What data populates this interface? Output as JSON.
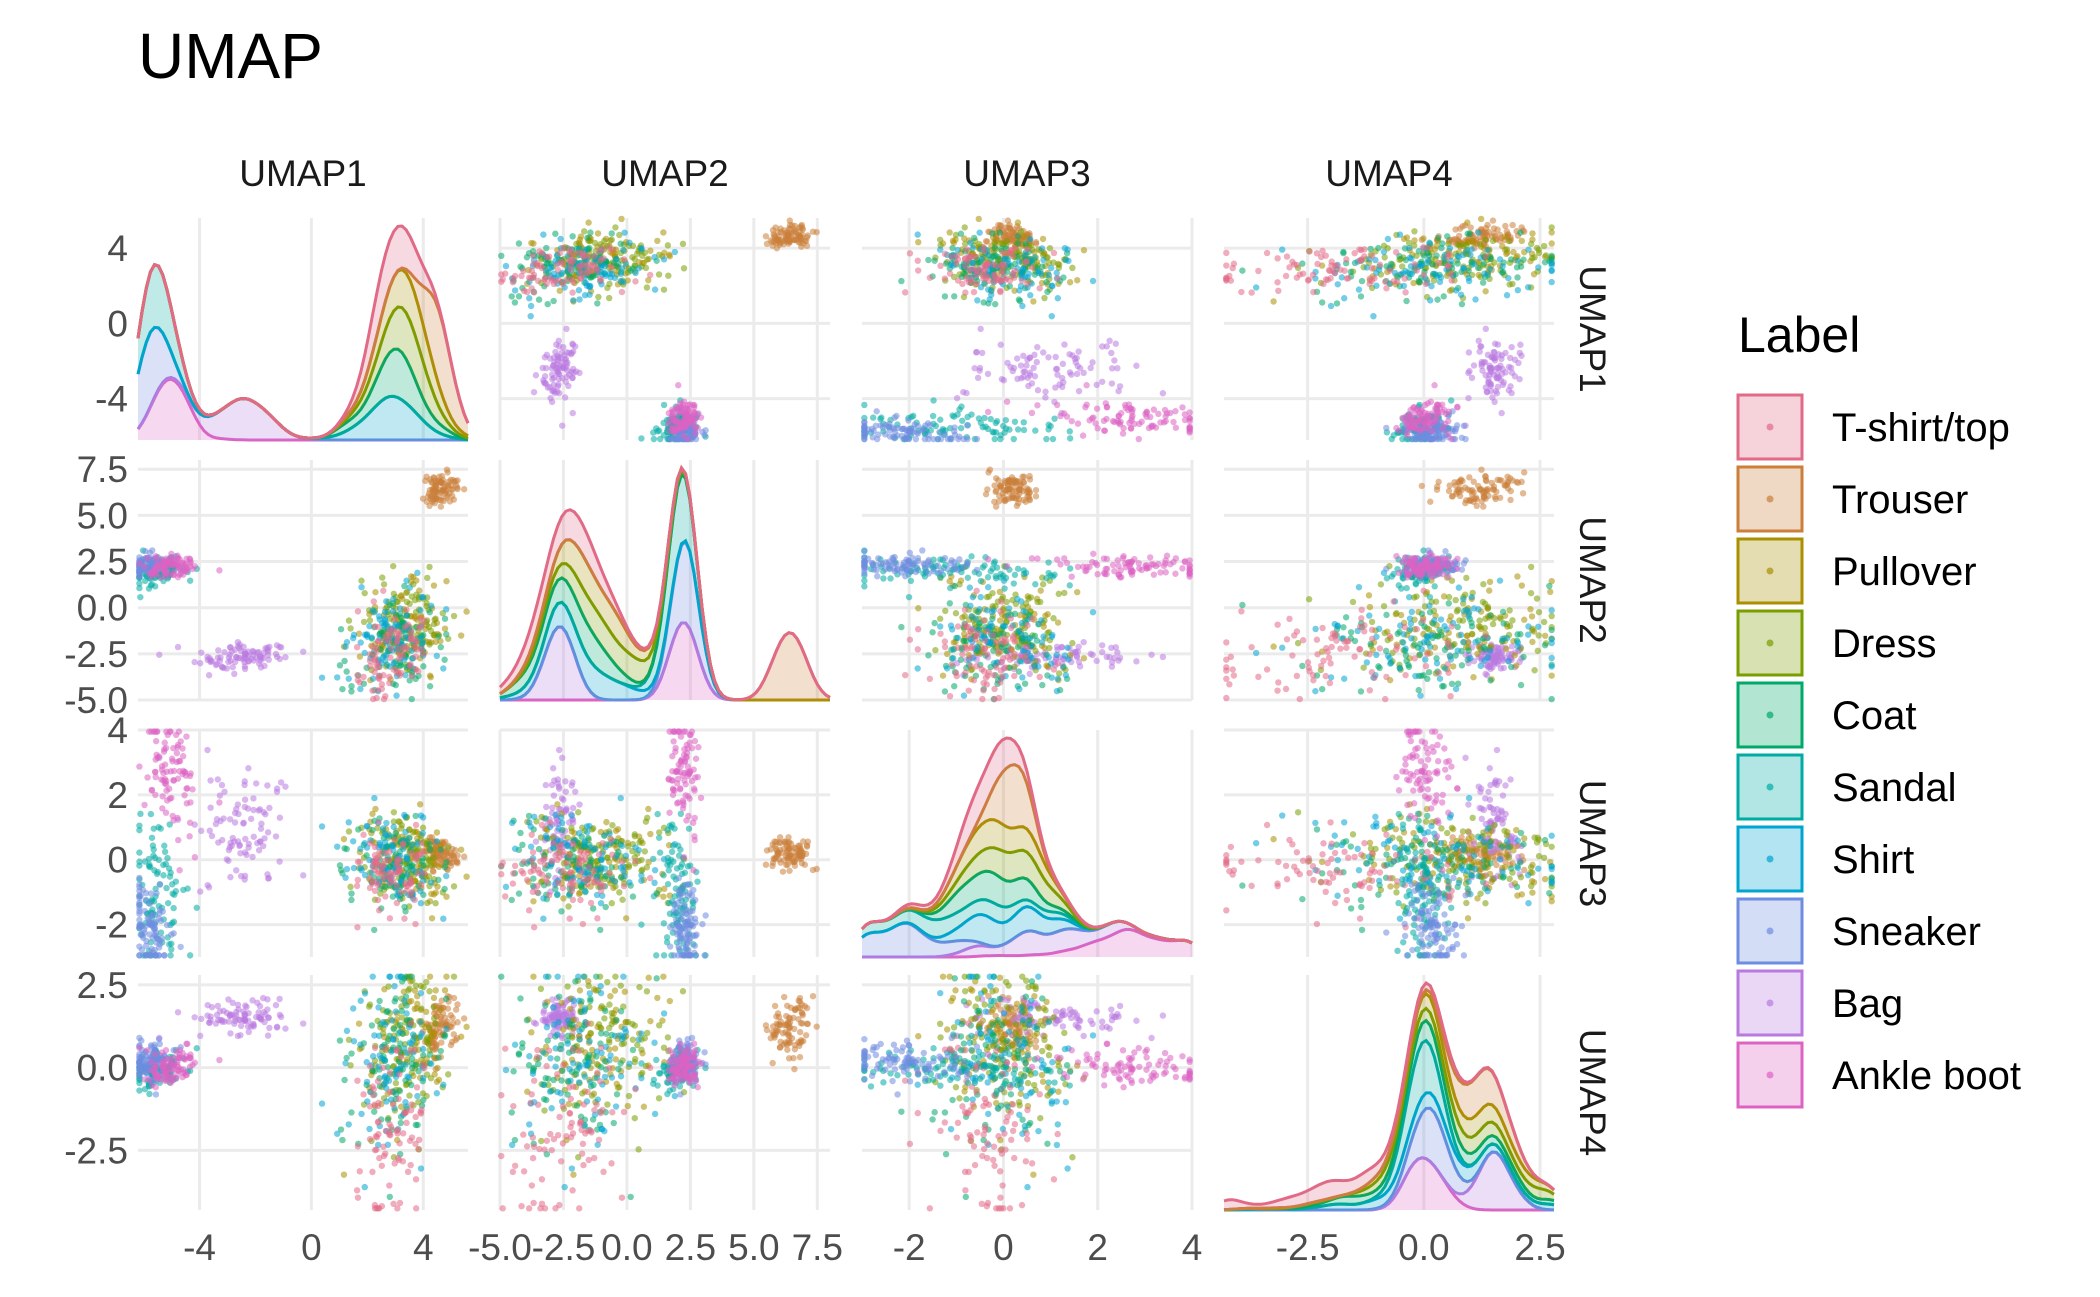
{
  "chart_data": {
    "type": "scatter-matrix",
    "title": "UMAP",
    "variables": [
      "UMAP1",
      "UMAP2",
      "UMAP3",
      "UMAP4"
    ],
    "diagonal": "density (stacked by label)",
    "ranges": {
      "UMAP1": [
        -6.2,
        5.6
      ],
      "UMAP2": [
        -5.0,
        8.0
      ],
      "UMAP3": [
        -3.0,
        4.0
      ],
      "UMAP4": [
        -4.3,
        2.8
      ]
    },
    "ticks": {
      "UMAP1": [
        -4,
        0,
        4
      ],
      "UMAP2": [
        -5.0,
        -2.5,
        0.0,
        2.5,
        5.0,
        7.5
      ],
      "UMAP3": [
        -2,
        0,
        2,
        4
      ],
      "UMAP4": [
        -2.5,
        0.0,
        2.5
      ]
    },
    "x_tick_labels": {
      "UMAP1": [
        "-4",
        "0",
        "4"
      ],
      "UMAP2": [
        "-5.0",
        "-2.5",
        "0.0",
        "2.5",
        "5.0",
        "7.5"
      ],
      "UMAP3": [
        "-2",
        "0",
        "2",
        "4"
      ],
      "UMAP4": [
        "-2.5",
        "0.0",
        "2.5"
      ]
    },
    "y_tick_labels": {
      "UMAP1": [
        "4",
        "0",
        "-4"
      ],
      "UMAP2": [
        "7.5",
        "5.0",
        "2.5",
        "0.0",
        "-2.5",
        "-5.0"
      ],
      "UMAP3": [
        "4",
        "2",
        "0",
        "-2"
      ],
      "UMAP4": [
        "2.5",
        "0.0",
        "-2.5"
      ]
    },
    "legend": {
      "title": "Label",
      "position": "right",
      "items": [
        {
          "label": "T-shirt/top",
          "color": "#E16A86"
        },
        {
          "label": "Trouser",
          "color": "#CB7F3A"
        },
        {
          "label": "Pullover",
          "color": "#AA9000"
        },
        {
          "label": "Dress",
          "color": "#7A9D00"
        },
        {
          "label": "Coat",
          "color": "#00A86A"
        },
        {
          "label": "Sandal",
          "color": "#00ABA4"
        },
        {
          "label": "Shirt",
          "color": "#00A4D1"
        },
        {
          "label": "Sneaker",
          "color": "#6F8DE0"
        },
        {
          "label": "Bag",
          "color": "#B97AE0"
        },
        {
          "label": "Ankle boot",
          "color": "#DD63C2"
        }
      ]
    },
    "clusters": [
      {
        "label": "Trouser",
        "UMAP1": 4.6,
        "UMAP2": 6.4,
        "UMAP3": 0.2,
        "UMAP4": 1.2,
        "spread": [
          0.3,
          0.4,
          0.25,
          0.5
        ]
      },
      {
        "label": "Bag",
        "UMAP1": -2.6,
        "UMAP2": -2.7,
        "UMAP3": 1.1,
        "UMAP4": 1.5,
        "spread": [
          0.9,
          0.4,
          0.9,
          0.3
        ]
      },
      {
        "label": "Pullover",
        "UMAP1": 3.5,
        "UMAP2": -1.3,
        "UMAP3": 0.0,
        "UMAP4": 0.8,
        "spread": [
          0.8,
          1.3,
          0.7,
          1.2
        ]
      },
      {
        "label": "Dress",
        "UMAP1": 3.3,
        "UMAP2": -1.0,
        "UMAP3": 0.0,
        "UMAP4": 0.6,
        "spread": [
          0.8,
          1.4,
          0.7,
          1.3
        ]
      },
      {
        "label": "Coat",
        "UMAP1": 3.0,
        "UMAP2": -2.0,
        "UMAP3": -0.2,
        "UMAP4": 0.3,
        "spread": [
          0.8,
          1.2,
          0.7,
          1.4
        ]
      },
      {
        "label": "Shirt",
        "UMAP1": 2.9,
        "UMAP2": -2.0,
        "UMAP3": 0.0,
        "UMAP4": 0.1,
        "spread": [
          0.8,
          1.3,
          0.8,
          1.5
        ]
      },
      {
        "label": "T-shirt/top",
        "UMAP1": 2.8,
        "UMAP2": -2.5,
        "UMAP3": -0.3,
        "UMAP4": -2.3,
        "spread": [
          0.6,
          1.2,
          0.6,
          1.4
        ]
      },
      {
        "label": "Sandal",
        "UMAP1": -5.5,
        "UMAP2": 2.0,
        "UMAP3": -1.0,
        "UMAP4": 0.0,
        "spread": [
          0.6,
          0.4,
          1.2,
          0.3
        ]
      },
      {
        "label": "Sneaker",
        "UMAP1": -5.8,
        "UMAP2": 2.3,
        "UMAP3": -2.0,
        "UMAP4": 0.2,
        "spread": [
          0.4,
          0.3,
          0.7,
          0.3
        ]
      },
      {
        "label": "Ankle boot",
        "UMAP1": -5.0,
        "UMAP2": 2.2,
        "UMAP3": 2.5,
        "UMAP4": 0.0,
        "spread": [
          0.5,
          0.3,
          1.0,
          0.3
        ]
      }
    ]
  }
}
